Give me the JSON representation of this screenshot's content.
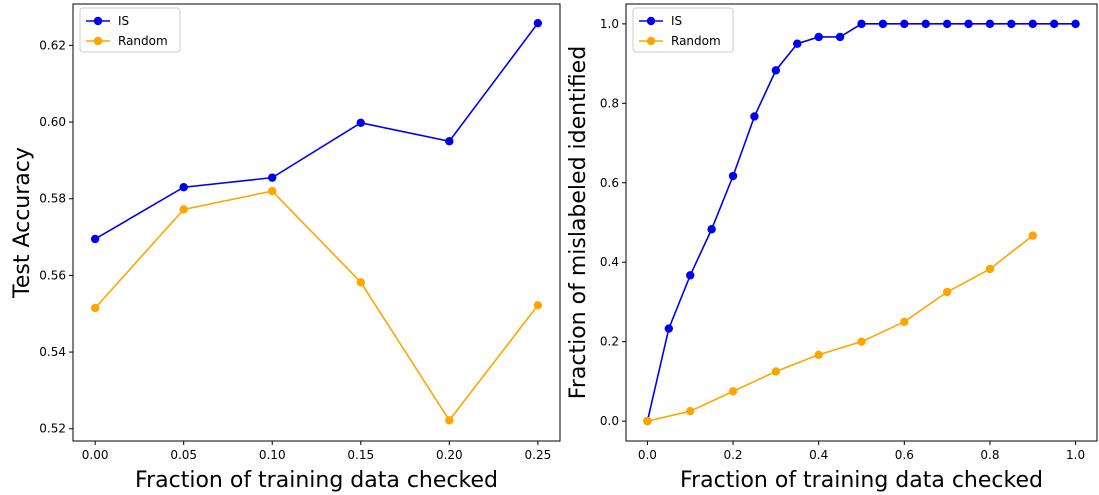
{
  "chart_data": [
    {
      "type": "line",
      "title": "",
      "xlabel": "Fraction of training data checked",
      "ylabel": "Test Accuracy",
      "xlim": [
        -0.0125,
        0.2625
      ],
      "ylim": [
        0.5168,
        0.6308
      ],
      "xticks": [
        "0.00",
        "0.05",
        "0.10",
        "0.15",
        "0.20",
        "0.25"
      ],
      "yticks": [
        "0.52",
        "0.54",
        "0.56",
        "0.58",
        "0.60",
        "0.62"
      ],
      "legend_position": "top-left",
      "grid": false,
      "x": [
        0.0,
        0.05,
        0.1,
        0.15,
        0.2,
        0.25
      ],
      "series": [
        {
          "name": "IS",
          "color": "#0000ee",
          "values": [
            0.5695,
            0.583,
            0.5855,
            0.5998,
            0.595,
            0.6258
          ]
        },
        {
          "name": "Random",
          "color": "#ffa500",
          "values": [
            0.5515,
            0.5772,
            0.582,
            0.5582,
            0.5222,
            0.5522
          ]
        }
      ]
    },
    {
      "type": "line",
      "title": "",
      "xlabel": "Fraction of training data checked",
      "ylabel": "Fraction of mislabeled identified",
      "xlim": [
        -0.05,
        1.05
      ],
      "ylim": [
        -0.05,
        1.05
      ],
      "xticks": [
        "0.0",
        "0.2",
        "0.4",
        "0.6",
        "0.8",
        "1.0"
      ],
      "yticks": [
        "0.0",
        "0.2",
        "0.4",
        "0.6",
        "0.8",
        "1.0"
      ],
      "legend_position": "top-left",
      "grid": false,
      "series": [
        {
          "name": "IS",
          "color": "#0000ee",
          "x": [
            0.0,
            0.05,
            0.1,
            0.15,
            0.2,
            0.25,
            0.3,
            0.35,
            0.4,
            0.45,
            0.5,
            0.55,
            0.6,
            0.65,
            0.7,
            0.75,
            0.8,
            0.85,
            0.9,
            0.95,
            1.0
          ],
          "values": [
            0.0,
            0.233,
            0.367,
            0.483,
            0.617,
            0.767,
            0.883,
            0.95,
            0.967,
            0.967,
            1.0,
            1.0,
            1.0,
            1.0,
            1.0,
            1.0,
            1.0,
            1.0,
            1.0,
            1.0,
            1.0
          ]
        },
        {
          "name": "Random",
          "color": "#ffa500",
          "x": [
            0.0,
            0.1,
            0.2,
            0.3,
            0.4,
            0.5,
            0.6,
            0.7,
            0.8,
            0.9
          ],
          "values": [
            0.0,
            0.025,
            0.075,
            0.125,
            0.167,
            0.2,
            0.25,
            0.325,
            0.383,
            0.467
          ]
        }
      ]
    }
  ]
}
